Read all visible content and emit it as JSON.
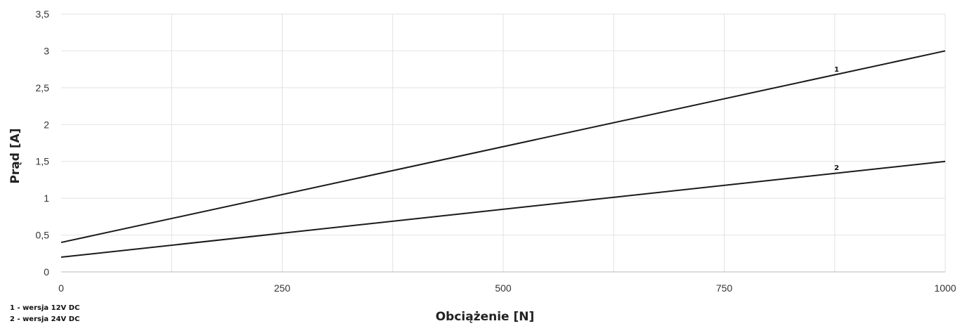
{
  "chart_data": {
    "type": "line",
    "title": "",
    "xlabel": "Obciążenie [N]",
    "ylabel": "Prąd [A]",
    "xlim": [
      0,
      1000
    ],
    "ylim": [
      0,
      3.5
    ],
    "x_major_ticks": [
      "0",
      "250",
      "500",
      "750",
      "1000"
    ],
    "y_ticks": [
      "0",
      "0,5",
      "1",
      "1,5",
      "2",
      "2,5",
      "3",
      "3,5"
    ],
    "grid": true,
    "series": [
      {
        "name": "1",
        "x": [
          0,
          1000
        ],
        "values": [
          0.4,
          3.0
        ],
        "color": "#1a1a1a"
      },
      {
        "name": "2",
        "x": [
          0,
          1000
        ],
        "values": [
          0.2,
          1.5
        ],
        "color": "#1a1a1a"
      }
    ],
    "annotations": [
      {
        "text": "1 - wersja 12V DC"
      },
      {
        "text": "2 - wersja 24V DC"
      }
    ]
  },
  "colors": {
    "grid": "#e2e2e2",
    "line": "#1a1a1a",
    "background": "#ffffff"
  }
}
